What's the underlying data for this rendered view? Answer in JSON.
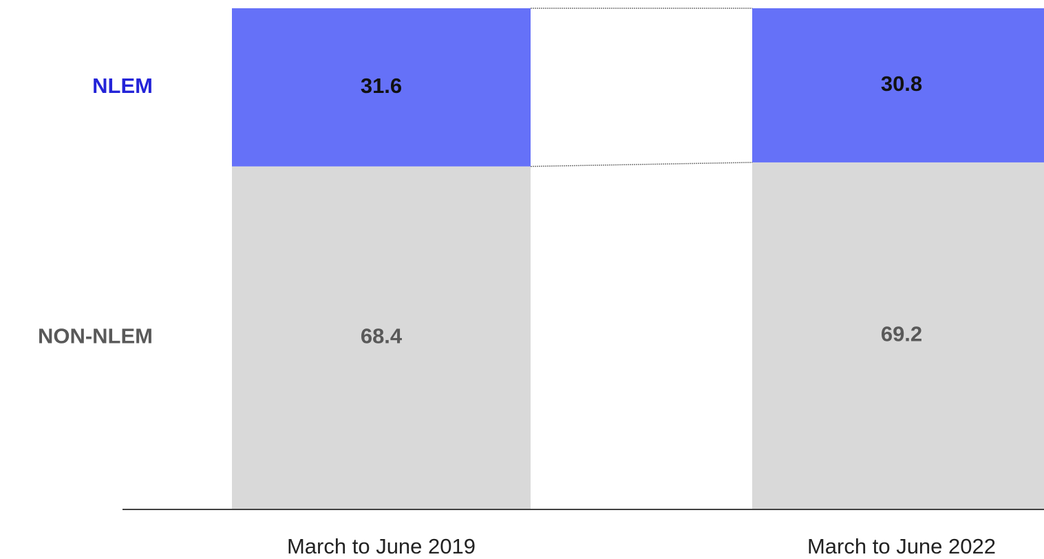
{
  "chart_data": {
    "type": "stacked_bar",
    "categories": [
      "March to June 2019",
      "March to June 2022"
    ],
    "series": [
      {
        "name": "NON-NLEM",
        "color": "#d9d9d9",
        "label_color": "#595959",
        "name_color": "#595959",
        "values": [
          68.4,
          69.2
        ]
      },
      {
        "name": "NLEM",
        "color": "#6571f8",
        "label_color": "#111111",
        "name_color": "#2424d8",
        "values": [
          31.6,
          30.8
        ]
      }
    ],
    "connectors": true
  }
}
